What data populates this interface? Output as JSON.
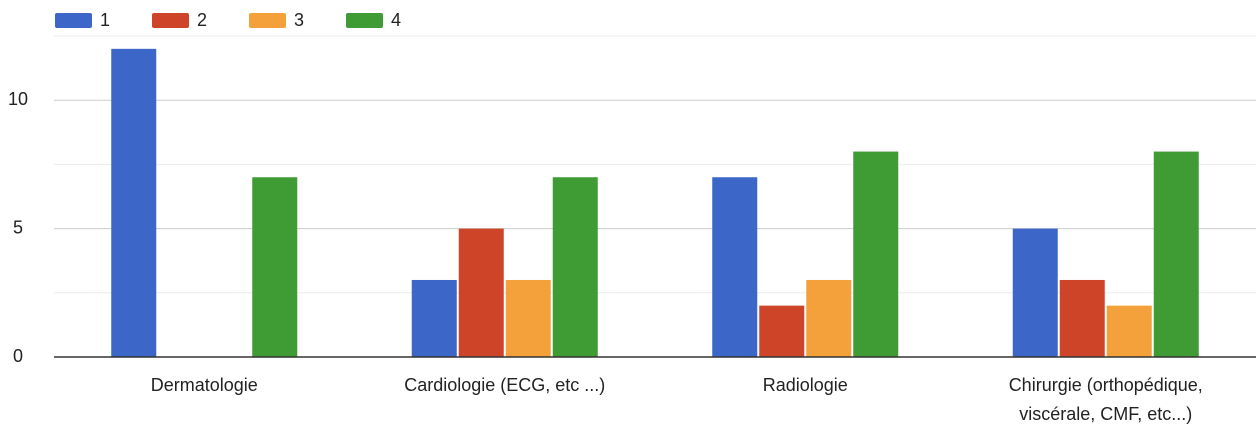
{
  "chart_data": {
    "type": "bar",
    "categories": [
      "Dermatologie",
      "Cardiologie (ECG, etc ...)",
      "Radiologie",
      "Chirurgie (orthopédique, viscérale, CMF, etc...)"
    ],
    "series": [
      {
        "name": "1",
        "color": "#3c67c9",
        "values": [
          12,
          3,
          7,
          5
        ]
      },
      {
        "name": "2",
        "color": "#cd4428",
        "values": [
          0,
          5,
          2,
          3
        ]
      },
      {
        "name": "3",
        "color": "#f4a13b",
        "values": [
          0,
          3,
          3,
          2
        ]
      },
      {
        "name": "4",
        "color": "#3f9c35",
        "values": [
          7,
          7,
          8,
          8
        ]
      }
    ],
    "ylim": [
      0,
      12.5
    ],
    "yticks": [
      0,
      5,
      10
    ],
    "minor_yticks": [
      2.5,
      7.5,
      12.5
    ],
    "grid": true,
    "legend": "top"
  }
}
